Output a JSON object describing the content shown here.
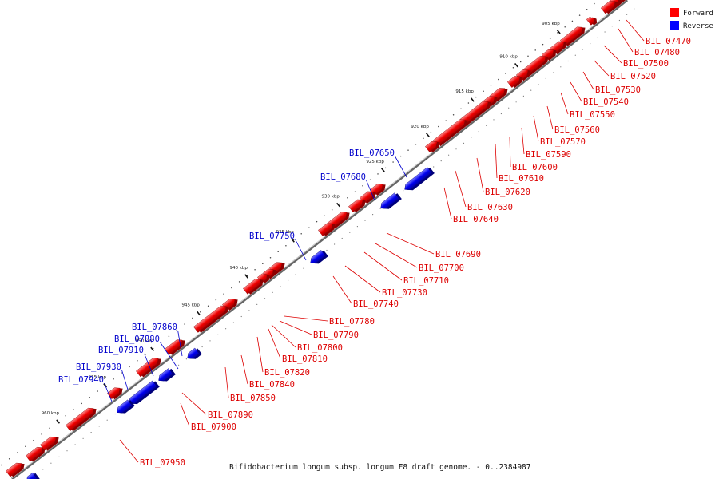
{
  "legend": {
    "forward": {
      "label": "Forward",
      "color": "#ff0000"
    },
    "reverse": {
      "label": "Reverse",
      "color": "#0000ff"
    }
  },
  "caption": "Bifidobacterium longum subsp. longum F8 draft genome. - 0..2384987",
  "ticks": [
    "905 kbp",
    "910 kbp",
    "915 kbp",
    "920 kbp",
    "925 kbp",
    "930 kbp",
    "935 kbp",
    "940 kbp",
    "945 kbp",
    "950 kbp",
    "955 kbp",
    "960 kbp"
  ],
  "forward_genes": [
    "BIL_07470",
    "BIL_07480",
    "BIL_07500",
    "BIL_07520",
    "BIL_07530",
    "BIL_07540",
    "BIL_07550",
    "BIL_07560",
    "BIL_07570",
    "BIL_07590",
    "BIL_07600",
    "BIL_07610",
    "BIL_07620",
    "BIL_07630",
    "BIL_07640",
    "BIL_07690",
    "BIL_07700",
    "BIL_07710",
    "BIL_07730",
    "BIL_07740",
    "BIL_07780",
    "BIL_07790",
    "BIL_07800",
    "BIL_07810",
    "BIL_07820",
    "BIL_07840",
    "BIL_07850",
    "BIL_07890",
    "BIL_07900",
    "BIL_07950"
  ],
  "reverse_genes": [
    "BIL_07650",
    "BIL_07680",
    "BIL_07750",
    "BIL_07860",
    "BIL_07880",
    "BIL_07910",
    "BIL_07930",
    "BIL_07940"
  ]
}
